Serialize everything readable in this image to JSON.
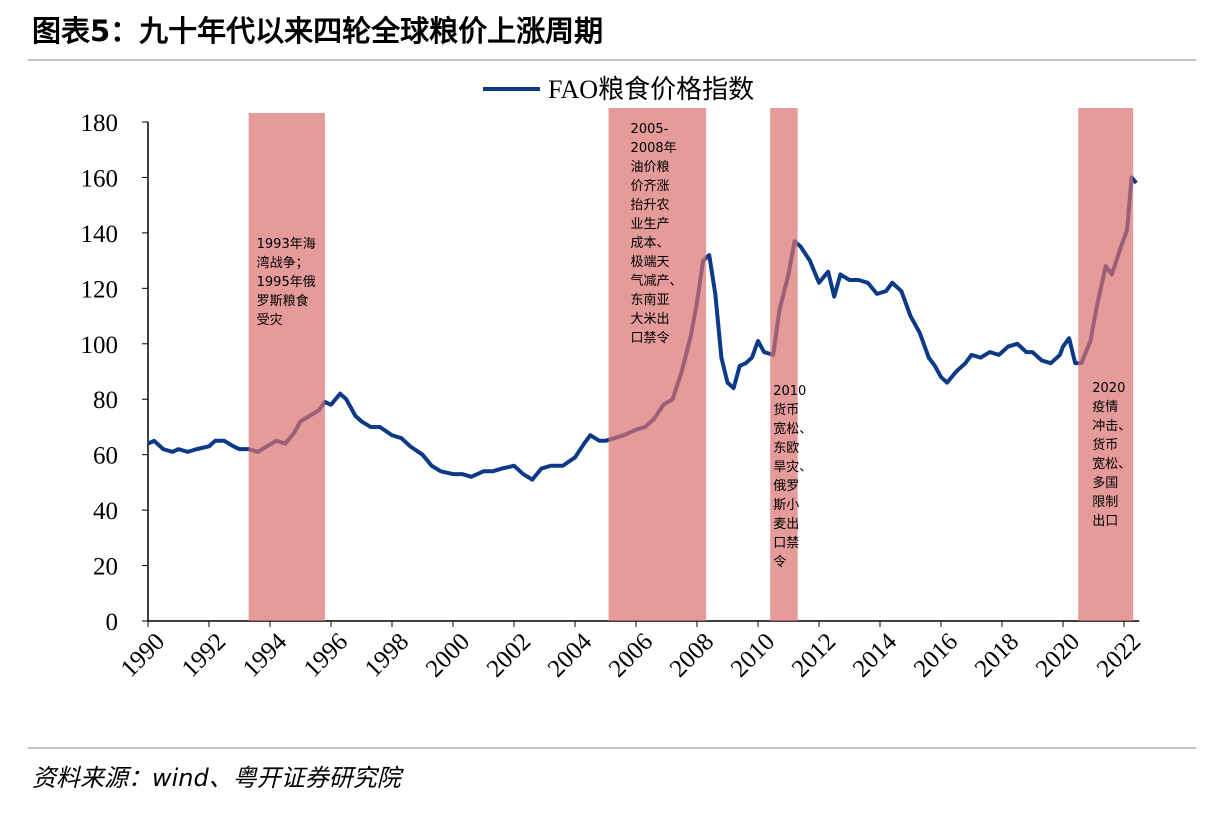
{
  "chart_data": {
    "type": "line",
    "title": "图表5：九十年代以来四轮全球粮价上涨周期",
    "source": "资料来源：wind、粤开证券研究院",
    "xlim": [
      1990,
      2022.5
    ],
    "xticks": [
      1990,
      1992,
      1994,
      1996,
      1998,
      2000,
      2002,
      2004,
      2006,
      2008,
      2010,
      2012,
      2014,
      2016,
      2018,
      2020,
      2022
    ],
    "ylim": [
      0,
      180
    ],
    "yticks": [
      0,
      20,
      40,
      60,
      80,
      100,
      120,
      140,
      160,
      180
    ],
    "series": [
      {
        "name": "FAO粮食价格指数",
        "color": "#0d3a88",
        "x": [
          1990.0,
          1990.2,
          1990.5,
          1990.8,
          1991.0,
          1991.3,
          1991.6,
          1992.0,
          1992.2,
          1992.5,
          1992.8,
          1993.0,
          1993.3,
          1993.6,
          1993.9,
          1994.2,
          1994.5,
          1994.8,
          1995.0,
          1995.3,
          1995.6,
          1995.8,
          1996.0,
          1996.3,
          1996.5,
          1996.8,
          1997.0,
          1997.3,
          1997.6,
          1998.0,
          1998.3,
          1998.6,
          1999.0,
          1999.3,
          1999.6,
          2000.0,
          2000.3,
          2000.6,
          2001.0,
          2001.3,
          2001.6,
          2002.0,
          2002.3,
          2002.6,
          2002.9,
          2003.2,
          2003.6,
          2004.0,
          2004.3,
          2004.5,
          2004.8,
          2005.0,
          2005.3,
          2005.6,
          2006.0,
          2006.3,
          2006.6,
          2006.9,
          2007.2,
          2007.5,
          2007.8,
          2008.0,
          2008.2,
          2008.4,
          2008.6,
          2008.8,
          2009.0,
          2009.2,
          2009.4,
          2009.6,
          2009.8,
          2010.0,
          2010.2,
          2010.5,
          2010.7,
          2011.0,
          2011.2,
          2011.4,
          2011.7,
          2012.0,
          2012.3,
          2012.5,
          2012.7,
          2013.0,
          2013.3,
          2013.6,
          2013.9,
          2014.2,
          2014.4,
          2014.7,
          2015.0,
          2015.3,
          2015.6,
          2015.8,
          2016.0,
          2016.2,
          2016.5,
          2016.8,
          2017.0,
          2017.3,
          2017.6,
          2017.9,
          2018.2,
          2018.5,
          2018.8,
          2019.0,
          2019.3,
          2019.6,
          2019.9,
          2020.0,
          2020.2,
          2020.4,
          2020.6,
          2020.9,
          2021.1,
          2021.4,
          2021.6,
          2021.9,
          2022.1,
          2022.25,
          2022.4
        ],
        "values": [
          64,
          65,
          62,
          61,
          62,
          61,
          62,
          63,
          65,
          65,
          63,
          62,
          62,
          61,
          63,
          65,
          64,
          68,
          72,
          74,
          76,
          79,
          78,
          82,
          80,
          74,
          72,
          70,
          70,
          67,
          66,
          63,
          60,
          56,
          54,
          53,
          53,
          52,
          54,
          54,
          55,
          56,
          53,
          51,
          55,
          56,
          56,
          59,
          64,
          67,
          65,
          65,
          66,
          67,
          69,
          70,
          73,
          78,
          80,
          90,
          103,
          115,
          130,
          132,
          118,
          95,
          86,
          84,
          92,
          93,
          95,
          101,
          97,
          96,
          112,
          125,
          137,
          135,
          130,
          122,
          126,
          117,
          125,
          123,
          123,
          122,
          118,
          119,
          122,
          119,
          110,
          104,
          95,
          92,
          88,
          86,
          90,
          93,
          96,
          95,
          97,
          96,
          99,
          100,
          97,
          97,
          94,
          93,
          96,
          99,
          102,
          93,
          93,
          101,
          113,
          128,
          125,
          135,
          141,
          160,
          158
        ]
      }
    ],
    "highlights": [
      {
        "range": [
          1993.3,
          1995.8
        ],
        "lines": [
          "1993年海",
          "湾战争；",
          "1995年俄",
          "罗斯粮食",
          "受灾"
        ]
      },
      {
        "range": [
          2005.1,
          2008.3
        ],
        "lines": [
          "2005-",
          "2008年",
          "油价粮",
          "价齐涨",
          "抬升农",
          "业生产",
          "成本、",
          "极端天",
          "气减产、",
          "东南亚",
          "大米出",
          "口禁令"
        ]
      },
      {
        "range": [
          2010.4,
          2011.3
        ],
        "lines": [
          "2010",
          "货币",
          "宽松、",
          "东欧",
          "旱灾、",
          "俄罗",
          "斯小",
          "麦出",
          "口禁",
          "令"
        ]
      },
      {
        "range": [
          2020.5,
          2022.3
        ],
        "lines": [
          "2020",
          "疫情",
          "冲击、",
          "货币",
          "宽松、",
          "多国",
          "限制",
          "出口"
        ]
      }
    ],
    "highlight_color": "#d9706f"
  }
}
